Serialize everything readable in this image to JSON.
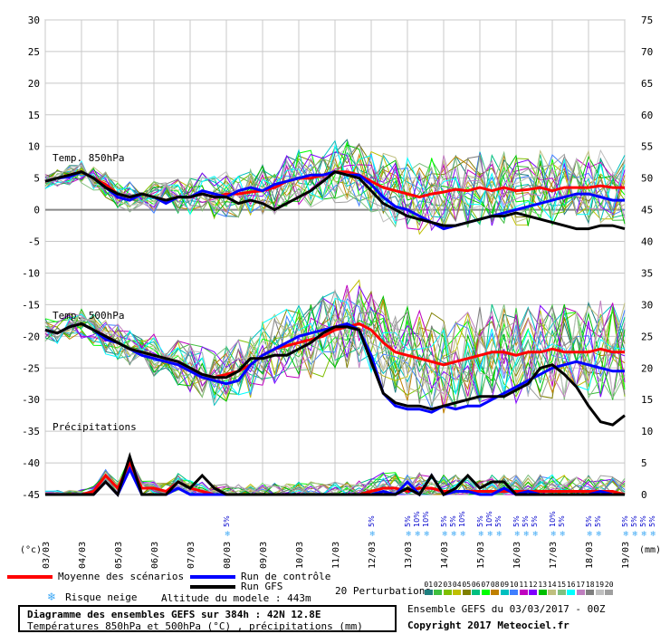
{
  "chart_data": {
    "type": "line",
    "title": "Diagramme des ensembles GEFS sur 384h : 42N 12.8E",
    "subtitle": "Températures 850hPa et 500hPa (°C) , précipitations (mm)",
    "ylabel_left": "(°c)",
    "ylabel_right": "(mm)",
    "left_axis": {
      "min": -45,
      "max": 30,
      "ticks": [
        30,
        25,
        20,
        15,
        10,
        5,
        0,
        -5,
        -10,
        -15,
        -20,
        -25,
        -30,
        -35,
        -40,
        -45
      ]
    },
    "right_axis": {
      "min": 0,
      "max": 75,
      "ticks": [
        75,
        70,
        65,
        60,
        55,
        50,
        45,
        40,
        35,
        30,
        25,
        20,
        15,
        10,
        5,
        0
      ]
    },
    "x_axis": {
      "ticks": [
        "03/03",
        "04/03",
        "05/03",
        "06/03",
        "07/03",
        "08/03",
        "09/03",
        "10/03",
        "11/03",
        "12/03",
        "13/03",
        "14/03",
        "15/03",
        "16/03",
        "17/03",
        "18/03",
        "19/03"
      ],
      "grid": true
    },
    "panel_labels": [
      "Temp. 850hPa",
      "Temp. 500hPa",
      "Précipitations"
    ],
    "series": [
      {
        "name": "Moyenne des scénarios",
        "color": "#ff0000",
        "panel": "t850",
        "values": [
          4.5,
          5.0,
          5.5,
          6.0,
          5.0,
          4.0,
          2.5,
          2.0,
          2.5,
          2.0,
          1.5,
          2.0,
          2.0,
          2.5,
          2.0,
          2.5,
          2.5,
          2.8,
          3.0,
          3.5,
          4.5,
          5.0,
          5.0,
          5.5,
          6.0,
          6.0,
          5.5,
          4.5,
          3.5,
          3.0,
          2.5,
          2.0,
          2.5,
          2.8,
          3.2,
          3.0,
          3.5,
          3.0,
          3.5,
          3.0,
          3.2,
          3.5,
          3.0,
          3.5,
          3.5,
          3.5,
          3.8,
          3.5,
          3.5
        ]
      },
      {
        "name": "Run de contrôle",
        "color": "#0000ff",
        "panel": "t850",
        "values": [
          4.5,
          5.0,
          5.2,
          6.0,
          5.0,
          3.5,
          2.0,
          1.5,
          2.5,
          2.0,
          1.0,
          2.0,
          2.0,
          3.0,
          2.5,
          2.0,
          3.0,
          3.5,
          3.0,
          4.0,
          4.5,
          5.0,
          5.5,
          5.5,
          6.0,
          5.5,
          5.5,
          4.0,
          2.0,
          0.5,
          0.0,
          -1.0,
          -2.0,
          -3.0,
          -2.5,
          -2.0,
          -1.5,
          -1.0,
          -0.5,
          0.0,
          0.5,
          1.0,
          1.5,
          2.0,
          2.5,
          2.5,
          2.0,
          1.5,
          1.5
        ]
      },
      {
        "name": "Run GFS",
        "color": "#000000",
        "panel": "t850",
        "values": [
          4.5,
          5.0,
          5.5,
          6.0,
          5.0,
          3.5,
          2.5,
          2.0,
          2.5,
          2.0,
          1.5,
          2.0,
          2.0,
          2.5,
          2.0,
          2.0,
          1.0,
          1.5,
          1.0,
          0.0,
          1.0,
          2.0,
          3.0,
          4.5,
          6.0,
          5.5,
          5.0,
          3.0,
          1.0,
          0.0,
          -1.0,
          -1.5,
          -2.0,
          -2.5,
          -2.5,
          -2.0,
          -1.5,
          -1.0,
          -1.0,
          -0.5,
          -1.0,
          -1.5,
          -2.0,
          -2.5,
          -3.0,
          -3.0,
          -2.5,
          -2.5,
          -3.0
        ]
      },
      {
        "name": "Moyenne des scénarios",
        "color": "#ff0000",
        "panel": "t500",
        "values": [
          -19.0,
          -19.5,
          -18.5,
          -18.0,
          -19.0,
          -20.0,
          -21.0,
          -22.0,
          -22.5,
          -23.0,
          -23.5,
          -24.0,
          -25.0,
          -26.0,
          -26.5,
          -26.0,
          -25.5,
          -24.5,
          -23.0,
          -22.0,
          -21.5,
          -21.0,
          -20.5,
          -20.0,
          -19.0,
          -18.5,
          -18.0,
          -19.0,
          -21.0,
          -22.5,
          -23.0,
          -23.5,
          -24.0,
          -24.5,
          -24.0,
          -23.5,
          -23.0,
          -22.5,
          -22.5,
          -23.0,
          -22.5,
          -22.5,
          -22.0,
          -22.5,
          -22.5,
          -22.5,
          -22.0,
          -22.5,
          -22.5
        ]
      },
      {
        "name": "Run de contrôle",
        "color": "#0000ff",
        "panel": "t500",
        "values": [
          -19.0,
          -19.5,
          -18.5,
          -18.0,
          -19.0,
          -20.5,
          -21.0,
          -22.0,
          -23.0,
          -23.5,
          -24.0,
          -24.5,
          -25.5,
          -26.5,
          -27.0,
          -27.5,
          -27.0,
          -24.5,
          -23.0,
          -22.0,
          -21.0,
          -20.0,
          -19.5,
          -19.0,
          -18.5,
          -18.0,
          -19.0,
          -23.0,
          -29.0,
          -31.0,
          -31.5,
          -31.5,
          -32.0,
          -31.0,
          -31.5,
          -31.0,
          -31.0,
          -30.0,
          -29.0,
          -28.0,
          -27.0,
          -26.0,
          -25.0,
          -24.5,
          -24.0,
          -24.5,
          -25.0,
          -25.5,
          -25.5
        ]
      },
      {
        "name": "Run GFS",
        "color": "#000000",
        "panel": "t500",
        "values": [
          -19.0,
          -19.5,
          -18.5,
          -18.0,
          -19.0,
          -20.0,
          -21.0,
          -22.0,
          -22.5,
          -23.0,
          -23.5,
          -24.0,
          -25.0,
          -26.0,
          -26.5,
          -26.5,
          -25.5,
          -23.5,
          -23.5,
          -23.0,
          -23.0,
          -22.0,
          -21.0,
          -19.5,
          -18.5,
          -18.5,
          -19.0,
          -24.0,
          -29.0,
          -30.5,
          -31.0,
          -31.0,
          -31.5,
          -31.0,
          -30.5,
          -30.0,
          -29.5,
          -29.5,
          -29.5,
          -28.5,
          -27.5,
          -25.0,
          -24.5,
          -26.0,
          -28.0,
          -31.0,
          -33.5,
          -34.0,
          -32.5
        ]
      },
      {
        "name": "Moyenne des scénarios",
        "color": "#ff0000",
        "panel": "precip",
        "values": [
          0,
          0,
          0,
          0,
          0.5,
          3,
          1,
          5,
          1,
          1,
          0.5,
          2,
          1,
          0.5,
          0,
          0,
          0,
          0,
          0,
          0,
          0,
          0,
          0,
          0,
          0,
          0,
          0,
          0.5,
          1,
          1,
          0.5,
          1,
          1,
          0.5,
          0.5,
          0.5,
          0.5,
          0.5,
          0.5,
          0.5,
          0.5,
          0.5,
          0.5,
          0.5,
          0.5,
          0.5,
          0.5,
          0.5,
          0
        ]
      },
      {
        "name": "Run de contrôle",
        "color": "#0000ff",
        "panel": "precip",
        "values": [
          0,
          0,
          0,
          0,
          0,
          2,
          0,
          4,
          0,
          0,
          0,
          1,
          0,
          0,
          0,
          0,
          0,
          0,
          0,
          0,
          0,
          0,
          0,
          0,
          0,
          0,
          0,
          0,
          0.5,
          0,
          2,
          0,
          3,
          0,
          0.5,
          0.5,
          0,
          0,
          1,
          0,
          0.5,
          0,
          0,
          0,
          0,
          0,
          0.5,
          0,
          0
        ]
      },
      {
        "name": "Run GFS",
        "color": "#000000",
        "panel": "precip",
        "values": [
          0,
          0,
          0,
          0,
          0,
          2,
          0,
          6,
          0,
          0,
          0,
          2,
          1,
          3,
          1,
          0,
          0,
          0,
          0,
          0,
          0,
          0,
          0,
          0,
          0,
          0,
          0,
          0,
          0,
          0,
          1,
          0,
          3,
          0,
          1,
          3,
          1,
          2,
          2,
          0,
          0,
          0,
          0,
          0,
          0,
          0,
          0,
          0,
          0
        ]
      }
    ],
    "snow_risk": [
      {
        "date": "07/03",
        "pct": "5%"
      },
      {
        "date": "11/03",
        "pct": "5%"
      },
      {
        "date": "12/03",
        "pct": "5%"
      },
      {
        "date": "12/03",
        "pct": "10%"
      },
      {
        "date": "12/03",
        "pct": "10%"
      },
      {
        "date": "13/03",
        "pct": "5%"
      },
      {
        "date": "13/03",
        "pct": "5%"
      },
      {
        "date": "13/03",
        "pct": "10%"
      },
      {
        "date": "14/03",
        "pct": "5%"
      },
      {
        "date": "14/03",
        "pct": "10%"
      },
      {
        "date": "14/03",
        "pct": "5%"
      },
      {
        "date": "15/03",
        "pct": "5%"
      },
      {
        "date": "15/03",
        "pct": "5%"
      },
      {
        "date": "15/03",
        "pct": "5%"
      },
      {
        "date": "16/03",
        "pct": "10%"
      },
      {
        "date": "16/03",
        "pct": "5%"
      },
      {
        "date": "17/03",
        "pct": "5%"
      },
      {
        "date": "17/03",
        "pct": "5%"
      },
      {
        "date": "18/03",
        "pct": "5%"
      },
      {
        "date": "18/03",
        "pct": "5%"
      },
      {
        "date": "18/03",
        "pct": "5%"
      },
      {
        "date": "18/03",
        "pct": "5%"
      }
    ]
  },
  "legend": {
    "mean": "Moyenne des scénarios",
    "control": "Run de contrôle",
    "gfs": "Run GFS",
    "snow": "Risque neige",
    "altitude": "Altitude du modele : 443m",
    "perturbations": "20 Perturbations",
    "pert_ids": [
      "01",
      "02",
      "03",
      "04",
      "05",
      "06",
      "07",
      "08",
      "09",
      "10",
      "11",
      "12",
      "13",
      "14",
      "15",
      "16",
      "17",
      "18",
      "19",
      "20"
    ],
    "pert_colors": [
      "#1e7f7f",
      "#3fbf3f",
      "#7fbf00",
      "#bfbf00",
      "#7f7f00",
      "#00bf7f",
      "#00ff00",
      "#bf7f00",
      "#00bfbf",
      "#3f7fff",
      "#bf00bf",
      "#7f00ff",
      "#00bf00",
      "#bfbf7f",
      "#7fbf7f",
      "#00ffff",
      "#bf7fbf",
      "#7f7f7f",
      "#bfbfbf",
      "#9f9f9f"
    ],
    "colors": {
      "mean": "#ff0000",
      "control": "#0000ff",
      "gfs": "#000000"
    }
  },
  "footer": {
    "title": "Diagramme des ensembles GEFS sur 384h : 42N 12.8E",
    "subtitle": "Températures 850hPa et 500hPa (°C) , précipitations (mm)",
    "ensemble": "Ensemble GEFS du 03/03/2017 - 00Z",
    "copyright": "Copyright 2017 Meteociel.fr"
  }
}
